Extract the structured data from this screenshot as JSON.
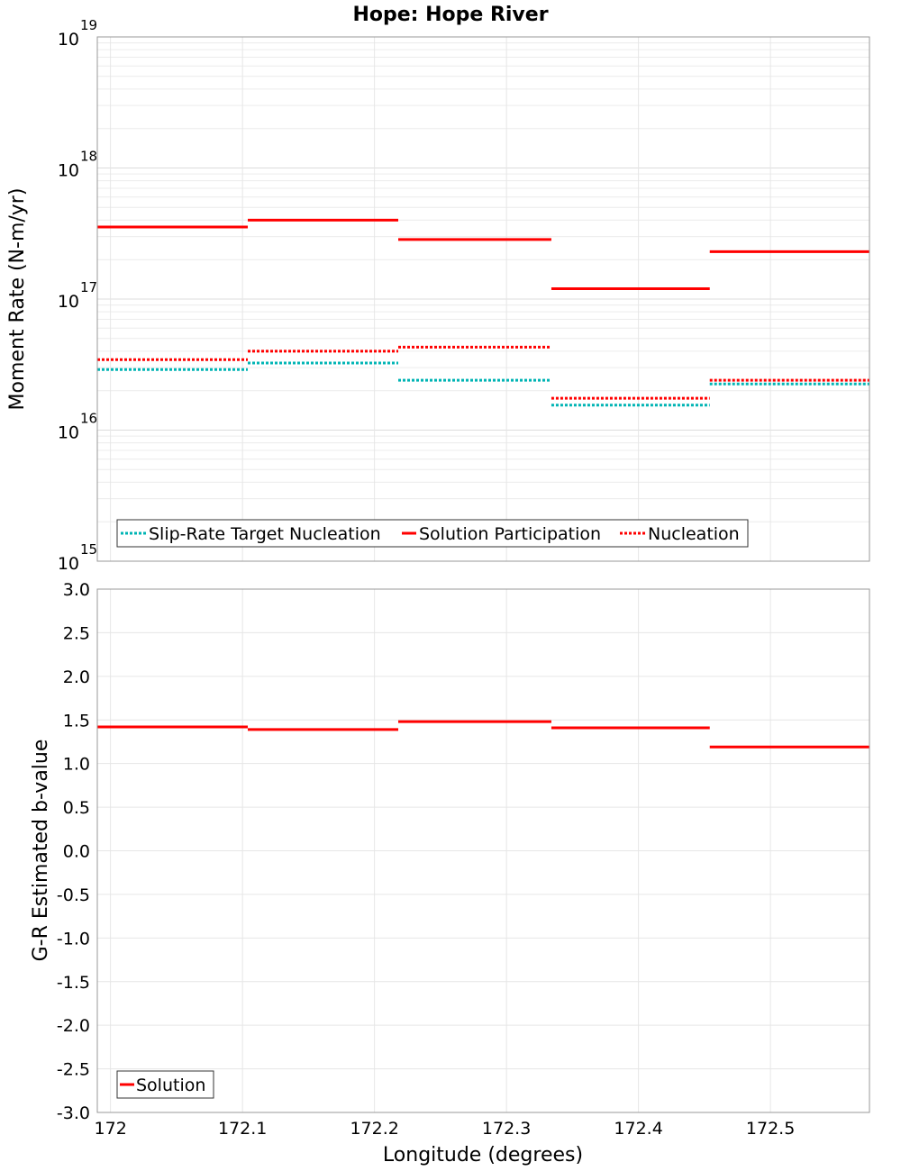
{
  "chart_data": [
    {
      "type": "line",
      "title": "Hope: Hope River",
      "ylabel": "Moment Rate (N-m/yr)",
      "yscale": "log",
      "ylim": [
        1000000000000000.0,
        1e+19
      ],
      "xlim": [
        171.99,
        172.575
      ],
      "grid": true,
      "legend_position": "bottom-left",
      "y_ticks": [
        {
          "base": "10",
          "exp": "15"
        },
        {
          "base": "10",
          "exp": "16"
        },
        {
          "base": "10",
          "exp": "17"
        },
        {
          "base": "10",
          "exp": "18"
        },
        {
          "base": "10",
          "exp": "19"
        }
      ],
      "series": [
        {
          "name": "Slip-Rate Target Nucleation",
          "color": "#00b4b4",
          "style": "dotted",
          "segments": [
            {
              "x0": 171.99,
              "x1": 172.104,
              "y": 2.9e+16
            },
            {
              "x0": 172.104,
              "x1": 172.218,
              "y": 3.25e+16
            },
            {
              "x0": 172.218,
              "x1": 172.334,
              "y": 2.4e+16
            },
            {
              "x0": 172.334,
              "x1": 172.454,
              "y": 1.55e+16
            },
            {
              "x0": 172.454,
              "x1": 172.575,
              "y": 2.25e+16
            }
          ]
        },
        {
          "name": "Solution Participation",
          "color": "#ff0000",
          "style": "solid",
          "segments": [
            {
              "x0": 171.99,
              "x1": 172.104,
              "y": 3.55e+17
            },
            {
              "x0": 172.104,
              "x1": 172.218,
              "y": 4e+17
            },
            {
              "x0": 172.218,
              "x1": 172.334,
              "y": 2.85e+17
            },
            {
              "x0": 172.334,
              "x1": 172.454,
              "y": 1.2e+17
            },
            {
              "x0": 172.454,
              "x1": 172.575,
              "y": 2.3e+17
            }
          ]
        },
        {
          "name": "Nucleation",
          "color": "#ff0000",
          "style": "dotted",
          "segments": [
            {
              "x0": 171.99,
              "x1": 172.104,
              "y": 3.45e+16
            },
            {
              "x0": 172.104,
              "x1": 172.218,
              "y": 4e+16
            },
            {
              "x0": 172.218,
              "x1": 172.334,
              "y": 4.3e+16
            },
            {
              "x0": 172.334,
              "x1": 172.454,
              "y": 1.75e+16
            },
            {
              "x0": 172.454,
              "x1": 172.575,
              "y": 2.4e+16
            }
          ]
        }
      ]
    },
    {
      "type": "line",
      "xlabel": "Longitude (degrees)",
      "ylabel": "G-R Estimated b-value",
      "ylim": [
        -3.0,
        3.0
      ],
      "xlim": [
        171.99,
        172.575
      ],
      "grid": true,
      "legend_position": "bottom-left",
      "y_ticks": [
        "-3.0",
        "-2.5",
        "-2.0",
        "-1.5",
        "-1.0",
        "-0.5",
        "0.0",
        "0.5",
        "1.0",
        "1.5",
        "2.0",
        "2.5",
        "3.0"
      ],
      "x_ticks": [
        "172",
        "172.1",
        "172.2",
        "172.3",
        "172.4",
        "172.5"
      ],
      "series": [
        {
          "name": "Solution",
          "color": "#ff0000",
          "style": "solid",
          "segments": [
            {
              "x0": 171.99,
              "x1": 172.104,
              "y": 1.42
            },
            {
              "x0": 172.104,
              "x1": 172.218,
              "y": 1.39
            },
            {
              "x0": 172.218,
              "x1": 172.334,
              "y": 1.48
            },
            {
              "x0": 172.334,
              "x1": 172.454,
              "y": 1.41
            },
            {
              "x0": 172.454,
              "x1": 172.575,
              "y": 1.19
            }
          ]
        }
      ]
    }
  ]
}
